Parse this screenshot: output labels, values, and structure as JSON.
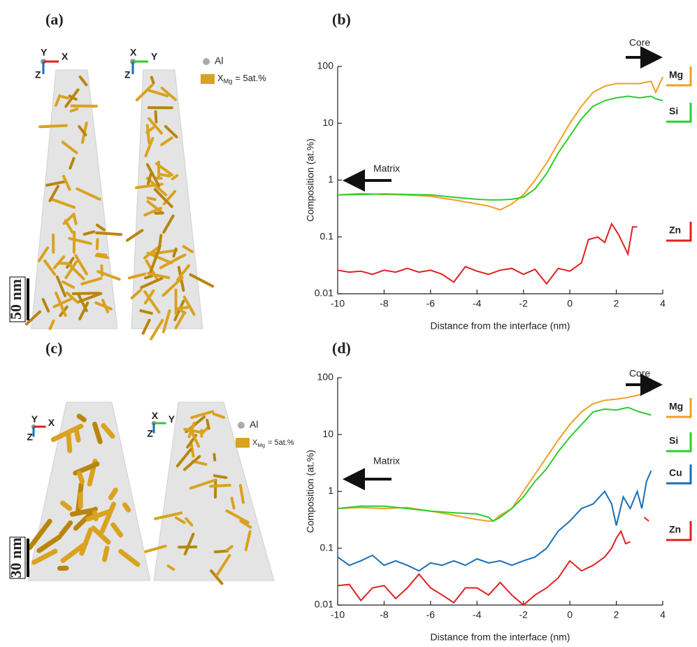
{
  "figure": {
    "labels": [
      "(a)",
      "(b)",
      "(c)",
      "(d)"
    ],
    "panel_a": {
      "axes": [
        [
          "Y",
          "X",
          "Z"
        ],
        [
          "X",
          "Y",
          "Z"
        ]
      ],
      "al": "Al",
      "iso": "X",
      "iso_sub": "Mg",
      "iso_eq": "= 5at.%",
      "scale": "50 nm"
    },
    "panel_c": {
      "axes": [
        [
          "Y",
          "X",
          "Z"
        ],
        [
          "X",
          "Y",
          "Z"
        ]
      ],
      "al": "Al",
      "iso": "X",
      "iso_sub": "Mg",
      "iso_eq": "= 5at.%",
      "scale": "30 nm"
    }
  },
  "chart_data": [
    {
      "type": "line",
      "yscale": "log",
      "xlabel": "Distance from the interface (nm)",
      "ylabel": "Composition (at.%)",
      "xlim": [
        -10,
        4
      ],
      "xticks": [
        -10,
        -8,
        -6,
        -4,
        -2,
        0,
        2,
        4
      ],
      "ylim": [
        0.01,
        100
      ],
      "yticks": [
        0.01,
        0.1,
        1,
        10,
        100
      ],
      "annotations": [
        "Core",
        "Matrix"
      ],
      "series": [
        {
          "name": "Mg",
          "color": "#f0a020",
          "x": [
            -10,
            -9,
            -8,
            -7,
            -6,
            -5,
            -4,
            -3.5,
            -3,
            -2.5,
            -2,
            -1.5,
            -1,
            -0.5,
            0,
            0.5,
            1,
            1.5,
            2,
            2.5,
            3,
            3.5,
            3.7,
            4
          ],
          "values": [
            0.55,
            0.58,
            0.56,
            0.55,
            0.52,
            0.45,
            0.38,
            0.35,
            0.3,
            0.38,
            0.55,
            1,
            2,
            4.5,
            10,
            20,
            35,
            45,
            50,
            50,
            50,
            55,
            35,
            65
          ]
        },
        {
          "name": "Si",
          "color": "#2ecc2e",
          "x": [
            -10,
            -9,
            -8,
            -7,
            -6,
            -5,
            -4,
            -3.5,
            -3,
            -2.5,
            -2,
            -1.5,
            -1,
            -0.5,
            0,
            0.5,
            1,
            1.5,
            2,
            2.5,
            3,
            3.5,
            3.7,
            4
          ],
          "values": [
            0.55,
            0.56,
            0.57,
            0.56,
            0.55,
            0.5,
            0.46,
            0.45,
            0.45,
            0.46,
            0.5,
            0.7,
            1.3,
            3,
            6,
            12,
            20,
            25,
            28,
            30,
            28,
            30,
            27,
            25
          ]
        },
        {
          "name": "Zn",
          "color": "#e02020",
          "x": [
            -10,
            -9.5,
            -9,
            -8.5,
            -8,
            -7.5,
            -7,
            -6.5,
            -6,
            -5.5,
            -5,
            -4.5,
            -4,
            -3.5,
            -3,
            -2.5,
            -2,
            -1.5,
            -1,
            -0.5,
            0,
            0.5,
            0.8,
            1.2,
            1.5,
            1.8,
            2.1,
            2.5,
            2.7,
            2.9
          ],
          "values": [
            0.026,
            0.024,
            0.025,
            0.022,
            0.026,
            0.024,
            0.028,
            0.024,
            0.026,
            0.022,
            0.016,
            0.03,
            0.025,
            0.022,
            0.026,
            0.028,
            0.022,
            0.027,
            0.015,
            0.028,
            0.025,
            0.035,
            0.09,
            0.1,
            0.08,
            0.17,
            0.11,
            0.05,
            0.15,
            0.15
          ]
        }
      ]
    },
    {
      "type": "line",
      "yscale": "log",
      "xlabel": "Distance from the interface (nm)",
      "ylabel": "Composition (at.%)",
      "xlim": [
        -10,
        4
      ],
      "xticks": [
        -10,
        -8,
        -6,
        -4,
        -2,
        0,
        2,
        4
      ],
      "ylim": [
        0.01,
        100
      ],
      "yticks": [
        0.01,
        0.1,
        1,
        10,
        100
      ],
      "annotations": [
        "Core",
        "Matrix"
      ],
      "series": [
        {
          "name": "Mg",
          "color": "#f0a020",
          "x": [
            -10,
            -9,
            -8,
            -7,
            -6,
            -5,
            -4,
            -3.5,
            -3.3,
            -3,
            -2.5,
            -2,
            -1.5,
            -1,
            -0.5,
            0,
            0.5,
            1,
            1.5,
            2,
            2.5,
            3,
            3.5
          ],
          "values": [
            0.5,
            0.52,
            0.5,
            0.52,
            0.45,
            0.38,
            0.32,
            0.3,
            0.3,
            0.38,
            0.5,
            1,
            2,
            4,
            8,
            15,
            25,
            35,
            40,
            42,
            45,
            50,
            60
          ]
        },
        {
          "name": "Si",
          "color": "#2ecc2e",
          "x": [
            -10,
            -9,
            -8,
            -7,
            -6,
            -5,
            -4,
            -3.5,
            -3.3,
            -3,
            -2.5,
            -2,
            -1.5,
            -1,
            -0.5,
            0,
            0.5,
            1,
            1.5,
            2,
            2.5,
            3,
            3.5
          ],
          "values": [
            0.5,
            0.55,
            0.55,
            0.5,
            0.45,
            0.42,
            0.4,
            0.35,
            0.3,
            0.35,
            0.5,
            0.8,
            1.5,
            2.5,
            5,
            9,
            15,
            25,
            28,
            27,
            30,
            25,
            22
          ]
        },
        {
          "name": "Cu",
          "color": "#1a6fb5",
          "x": [
            -10,
            -9.5,
            -9,
            -8.5,
            -8,
            -7.5,
            -7,
            -6.5,
            -6,
            -5.5,
            -5,
            -4.5,
            -4,
            -3.5,
            -3,
            -2.5,
            -2,
            -1.5,
            -1,
            -0.5,
            0,
            0.5,
            1,
            1.5,
            1.8,
            2,
            2.3,
            2.6,
            2.9,
            3.1,
            3.3,
            3.5
          ],
          "values": [
            0.07,
            0.05,
            0.06,
            0.075,
            0.05,
            0.06,
            0.05,
            0.04,
            0.055,
            0.05,
            0.06,
            0.05,
            0.065,
            0.055,
            0.06,
            0.05,
            0.06,
            0.07,
            0.1,
            0.2,
            0.3,
            0.5,
            0.6,
            1,
            0.6,
            0.25,
            0.8,
            0.5,
            1,
            0.5,
            1.5,
            2.3
          ]
        },
        {
          "name": "Zn",
          "color": "#e02020",
          "x": [
            -10,
            -9.5,
            -9,
            -8.5,
            -8,
            -7.5,
            -7,
            -6.5,
            -6,
            -5.5,
            -5,
            -4.5,
            -4,
            -3.5,
            -3,
            -2.5,
            -2,
            -1.5,
            -1,
            -0.5,
            0,
            0.5,
            1,
            1.5,
            1.8,
            2,
            2.2,
            2.4,
            2.6,
            2.8,
            3.2,
            3.4
          ],
          "values": [
            0.022,
            0.023,
            0.012,
            0.02,
            0.022,
            0.013,
            0.02,
            0.035,
            0.02,
            0.015,
            0.011,
            0.02,
            0.02,
            0.015,
            0.025,
            0.015,
            0.01,
            0.015,
            0.02,
            0.03,
            0.06,
            0.04,
            0.05,
            0.07,
            0.1,
            0.15,
            0.2,
            0.12,
            0.13,
            null,
            0.35,
            0.3
          ]
        }
      ]
    }
  ]
}
